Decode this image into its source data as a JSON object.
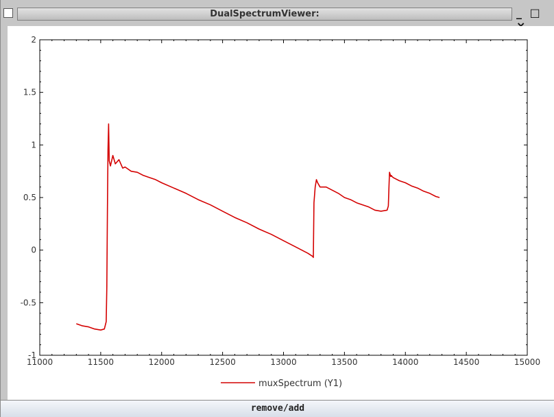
{
  "window": {
    "title": "DualSpectrumViewer:",
    "minimize_glyph": "_",
    "maximize_glyph": "□",
    "close_glyph": "×"
  },
  "footer": {
    "button_label": "remove/add"
  },
  "colors": {
    "series": "#d40000",
    "background": "#c6c6c6",
    "plot_bg": "#ffffff"
  },
  "chart_data": {
    "type": "line",
    "title": "",
    "xlabel": "",
    "ylabel": "",
    "xlim": [
      11000,
      15000
    ],
    "ylim": [
      -1,
      2
    ],
    "x_ticks": [
      11000,
      11500,
      12000,
      12500,
      13000,
      13500,
      14000,
      14500,
      15000
    ],
    "y_ticks": [
      -1,
      -0.5,
      0,
      0.5,
      1,
      1.5,
      2
    ],
    "x_tick_labels": [
      "11000",
      "11500",
      "12000",
      "12500",
      "13000",
      "13500",
      "14000",
      "14500",
      "15000"
    ],
    "y_tick_labels": [
      "-1",
      "-0.5",
      "0",
      "0.5",
      "1",
      "1.5",
      "2"
    ],
    "legend": {
      "placement": "bottom-center",
      "entries": [
        "muxSpectrum (Y1)"
      ]
    },
    "grid": false,
    "series": [
      {
        "name": "muxSpectrum (Y1)",
        "color": "#d40000",
        "x": [
          11300,
          11350,
          11400,
          11450,
          11500,
          11530,
          11545,
          11550,
          11555,
          11560,
          11565,
          11570,
          11580,
          11600,
          11620,
          11650,
          11680,
          11700,
          11750,
          11800,
          11850,
          11900,
          11950,
          12000,
          12100,
          12200,
          12300,
          12400,
          12500,
          12600,
          12700,
          12800,
          12900,
          13000,
          13100,
          13200,
          13240,
          13245,
          13250,
          13260,
          13270,
          13280,
          13300,
          13350,
          13400,
          13450,
          13500,
          13550,
          13600,
          13650,
          13700,
          13750,
          13800,
          13850,
          13860,
          13865,
          13870,
          13875,
          13880,
          13885,
          13890,
          13900,
          13950,
          14000,
          14050,
          14100,
          14150,
          14200,
          14250,
          14280
        ],
        "y": [
          -0.7,
          -0.72,
          -0.73,
          -0.75,
          -0.76,
          -0.75,
          -0.68,
          -0.35,
          0.4,
          0.95,
          1.2,
          0.85,
          0.8,
          0.9,
          0.82,
          0.86,
          0.78,
          0.79,
          0.75,
          0.74,
          0.71,
          0.69,
          0.67,
          0.64,
          0.59,
          0.54,
          0.48,
          0.43,
          0.37,
          0.31,
          0.26,
          0.2,
          0.15,
          0.09,
          0.03,
          -0.03,
          -0.06,
          -0.07,
          0.45,
          0.6,
          0.67,
          0.64,
          0.6,
          0.6,
          0.57,
          0.54,
          0.5,
          0.48,
          0.45,
          0.43,
          0.41,
          0.38,
          0.37,
          0.38,
          0.42,
          0.6,
          0.74,
          0.72,
          0.7,
          0.71,
          0.7,
          0.69,
          0.66,
          0.64,
          0.61,
          0.59,
          0.56,
          0.54,
          0.51,
          0.5
        ]
      }
    ]
  }
}
